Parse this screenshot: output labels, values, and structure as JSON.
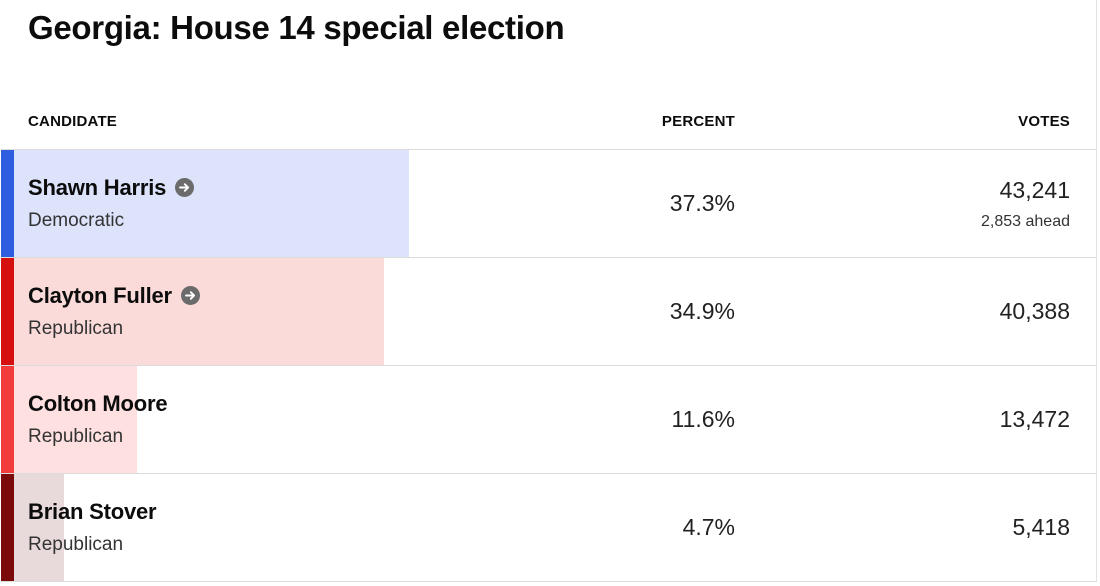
{
  "title": "Georgia: House 14 special election",
  "columns": {
    "candidate": "CANDIDATE",
    "percent": "PERCENT",
    "votes": "VOTES"
  },
  "colors": {
    "democratic_stripe": "#2f5de0",
    "democratic_bar": "#dce3fb",
    "fuller_stripe": "#d60f0f",
    "fuller_bar": "#fadbda",
    "moore_stripe": "#f23b3b",
    "moore_bar": "#fde0df",
    "stover_stripe": "#7b0b0b",
    "stover_bar": "#e8dada",
    "info_icon": "#6b6b6b"
  },
  "candidates": [
    {
      "name": "Shawn Harris",
      "party": "Democratic",
      "percent": "37.3%",
      "share": 0.373,
      "votes": "43,241",
      "ahead": "2,853 ahead",
      "has_link_icon": true,
      "icon": "arrow-right-circle-icon"
    },
    {
      "name": "Clayton Fuller",
      "party": "Republican",
      "percent": "34.9%",
      "share": 0.349,
      "votes": "40,388",
      "has_link_icon": true,
      "icon": "arrow-right-circle-icon"
    },
    {
      "name": "Colton Moore",
      "party": "Republican",
      "percent": "11.6%",
      "share": 0.116,
      "votes": "13,472",
      "has_link_icon": false
    },
    {
      "name": "Brian Stover",
      "party": "Republican",
      "percent": "4.7%",
      "share": 0.047,
      "votes": "5,418",
      "has_link_icon": false
    }
  ]
}
